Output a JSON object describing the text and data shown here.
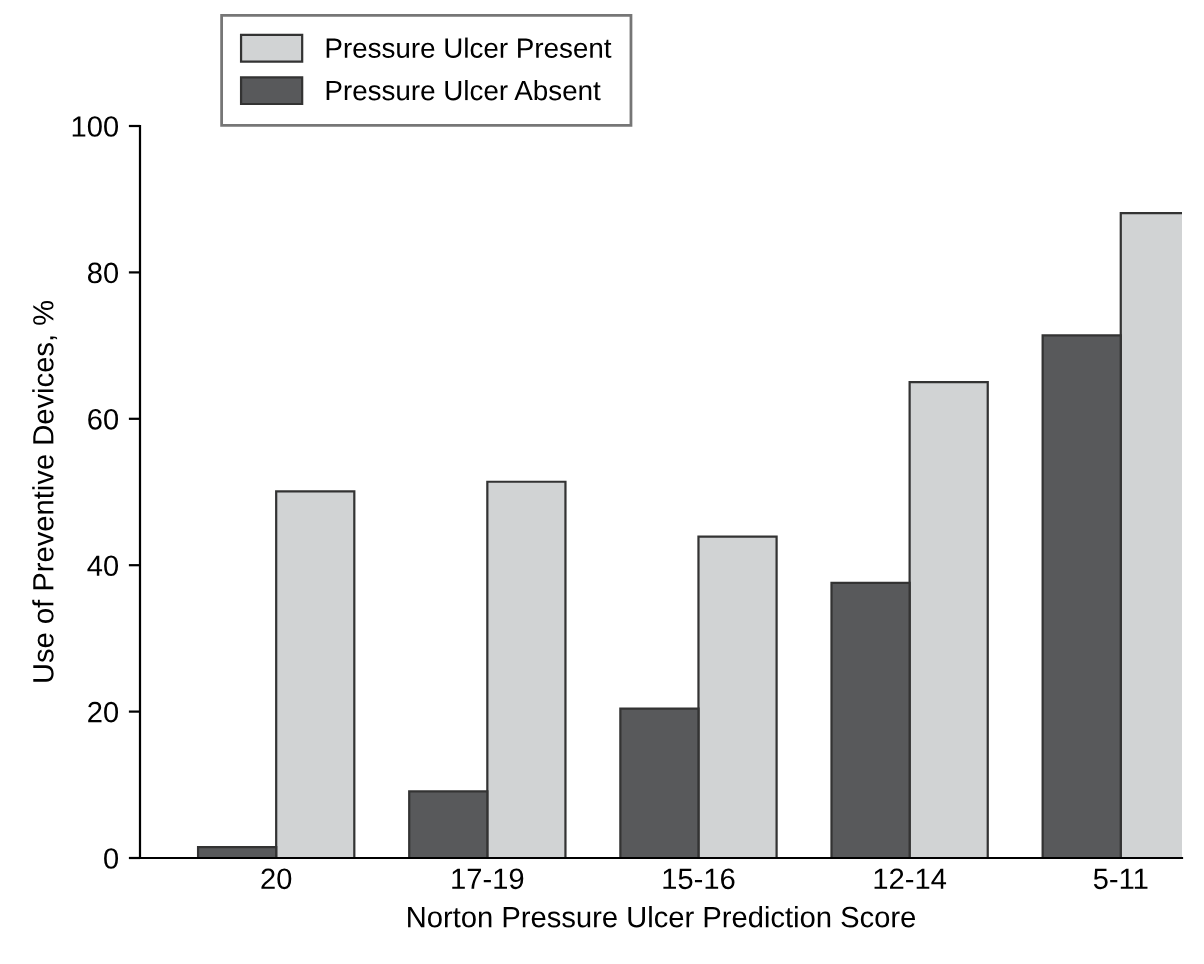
{
  "chart_data": {
    "type": "bar",
    "xlabel": "Norton Pressure Ulcer Prediction Score",
    "ylabel": "Use of Preventive Devices, %",
    "categories": [
      "20",
      "17-19",
      "15-16",
      "12-14",
      "5-11"
    ],
    "series": [
      {
        "name": "Pressure Ulcer Present",
        "color": "#d1d3d4",
        "values": [
          50.1,
          51.4,
          43.9,
          65.0,
          88.1
        ]
      },
      {
        "name": "Pressure Ulcer Absent",
        "color": "#58595b",
        "values": [
          1.5,
          9.1,
          20.4,
          37.6,
          71.4
        ]
      }
    ],
    "ylim": [
      0,
      100
    ],
    "yticks": [
      0,
      20,
      40,
      60,
      80,
      100
    ],
    "legend": "top left",
    "grid": false
  }
}
